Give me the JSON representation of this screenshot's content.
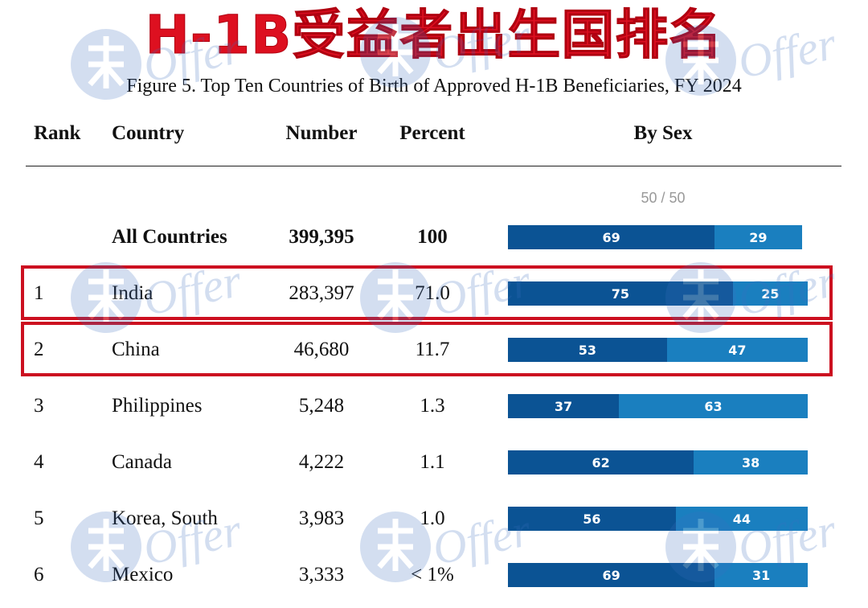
{
  "banner": {
    "title": "H-1B受益者出生国排名"
  },
  "chart_data": {
    "type": "table",
    "title": "Figure 5. Top Ten Countries of Birth of Approved H-1B Beneficiaries, FY 2024",
    "columns": [
      "Rank",
      "Country",
      "Number",
      "Percent",
      "By Sex"
    ],
    "bar_scale_note": "50 / 50",
    "series": [
      {
        "name": "",
        "color": "#0b5394"
      },
      {
        "name": "",
        "color": "#1a7fbf"
      }
    ],
    "rows": [
      {
        "rank": "",
        "country": "All Countries",
        "number": "399,395",
        "percent": "100",
        "sex": [
          69,
          29
        ],
        "bold": true
      },
      {
        "rank": "1",
        "country": "India",
        "number": "283,397",
        "percent": "71.0",
        "sex": [
          75,
          25
        ],
        "highlight": true
      },
      {
        "rank": "2",
        "country": "China",
        "number": "46,680",
        "percent": "11.7",
        "sex": [
          53,
          47
        ],
        "highlight": true
      },
      {
        "rank": "3",
        "country": "Philippines",
        "number": "5,248",
        "percent": "1.3",
        "sex": [
          37,
          63
        ]
      },
      {
        "rank": "4",
        "country": "Canada",
        "number": "4,222",
        "percent": "1.1",
        "sex": [
          62,
          38
        ]
      },
      {
        "rank": "5",
        "country": "Korea, South",
        "number": "3,983",
        "percent": "1.0",
        "sex": [
          56,
          44
        ]
      },
      {
        "rank": "6",
        "country": "Mexico",
        "number": "3,333",
        "percent": "< 1%",
        "sex": [
          69,
          31
        ]
      }
    ]
  },
  "watermark": {
    "text": "Offer"
  },
  "colors": {
    "banner_red": "#dd1020",
    "highlight_red": "#cc1020",
    "bar_dark": "#0b5394",
    "bar_light": "#1a7fbf",
    "watermark_blue": "#3a6fc0"
  }
}
